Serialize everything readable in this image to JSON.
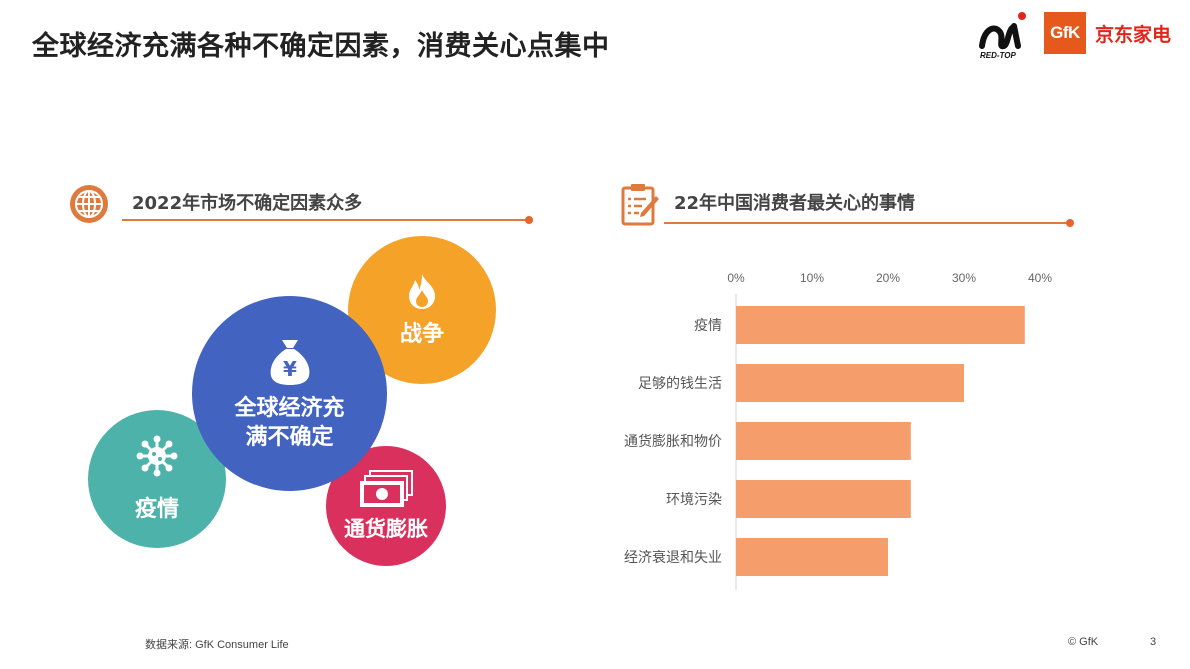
{
  "header": {
    "title": "全球经济充满各种不确定因素，消费关心点集中",
    "logo_redtop_text": "RED-TOP",
    "logo_gfk_text": "GfK",
    "logo_jd_text": "京东家电"
  },
  "left_section": {
    "icon": "globe-icon",
    "title": "2022年市场不确定因素众多",
    "bubbles": [
      {
        "label": "战争",
        "icon": "fire-icon",
        "color": "#f5a229"
      },
      {
        "label_line1": "全球经济充",
        "label_line2": "满不确定",
        "icon": "money-bag-icon",
        "color": "#4263c0"
      },
      {
        "label": "疫情",
        "icon": "virus-icon",
        "color": "#4db3aa"
      },
      {
        "label": "通货膨胀",
        "icon": "banknotes-icon",
        "color": "#d9305d"
      }
    ]
  },
  "right_section": {
    "icon": "clipboard-edit-icon",
    "title": "22年中国消费者最关心的事情"
  },
  "chart_data": {
    "type": "bar",
    "orientation": "horizontal",
    "categories": [
      "疫情",
      "足够的钱生活",
      "通货膨胀和物价",
      "环境污染",
      "经济衰退和失业"
    ],
    "values": [
      0.38,
      0.3,
      0.23,
      0.23,
      0.2
    ],
    "x_ticks": [
      "0%",
      "10%",
      "20%",
      "30%",
      "40%"
    ],
    "xlim": [
      0,
      0.4
    ],
    "x_axis_position": "top",
    "bar_color": "#f59d6b",
    "title": "22年中国消费者最关心的事情",
    "xlabel": "",
    "ylabel": "",
    "grid": false
  },
  "footer": {
    "source": "数据来源: GfK Consumer Life",
    "copyright": "© GfK",
    "page": "3"
  }
}
